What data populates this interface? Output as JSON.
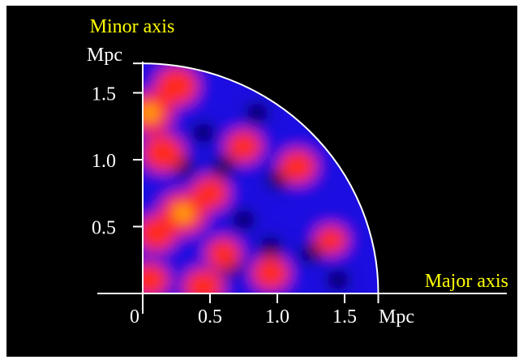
{
  "chart_data": {
    "type": "heatmap",
    "title": "",
    "shape": "quarter-ellipse density map",
    "colors": {
      "background": "#000000",
      "low": "#1a10e0",
      "mid": "#ff2a1a",
      "high": "#ffd000",
      "axes": "#ffffff",
      "axis_titles": "#ffff00"
    },
    "x_axis": {
      "title": "Major axis",
      "unit": "Mpc",
      "ticks": [
        "0",
        "0.5",
        "1.0",
        "1.5"
      ],
      "tick_values": [
        0,
        0.5,
        1.0,
        1.5
      ],
      "range": [
        0,
        1.75
      ]
    },
    "y_axis": {
      "title": "Minor axis",
      "unit": "Mpc",
      "ticks": [
        "0.5",
        "1.0",
        "1.5"
      ],
      "tick_values": [
        0.5,
        1.0,
        1.5
      ],
      "range": [
        0,
        1.72
      ]
    },
    "ellipse": {
      "semi_major_mpc": 1.75,
      "semi_minor_mpc": 1.72
    },
    "hotspots": [
      {
        "x": 0.05,
        "y": 1.35,
        "level": 0.9
      },
      {
        "x": 0.25,
        "y": 1.55,
        "level": 0.8
      },
      {
        "x": 0.15,
        "y": 1.05,
        "level": 0.75
      },
      {
        "x": 0.3,
        "y": 0.6,
        "level": 0.95
      },
      {
        "x": 0.5,
        "y": 0.75,
        "level": 0.6
      },
      {
        "x": 0.1,
        "y": 0.45,
        "level": 0.7
      },
      {
        "x": 0.75,
        "y": 1.1,
        "level": 0.55
      },
      {
        "x": 0.6,
        "y": 0.3,
        "level": 0.5
      },
      {
        "x": 0.95,
        "y": 0.15,
        "level": 0.6
      },
      {
        "x": 1.15,
        "y": 0.95,
        "level": 0.6
      },
      {
        "x": 0.45,
        "y": 0.05,
        "level": 0.7
      },
      {
        "x": 0.05,
        "y": 0.1,
        "level": 0.65
      },
      {
        "x": 1.4,
        "y": 0.4,
        "level": 0.4
      }
    ]
  }
}
